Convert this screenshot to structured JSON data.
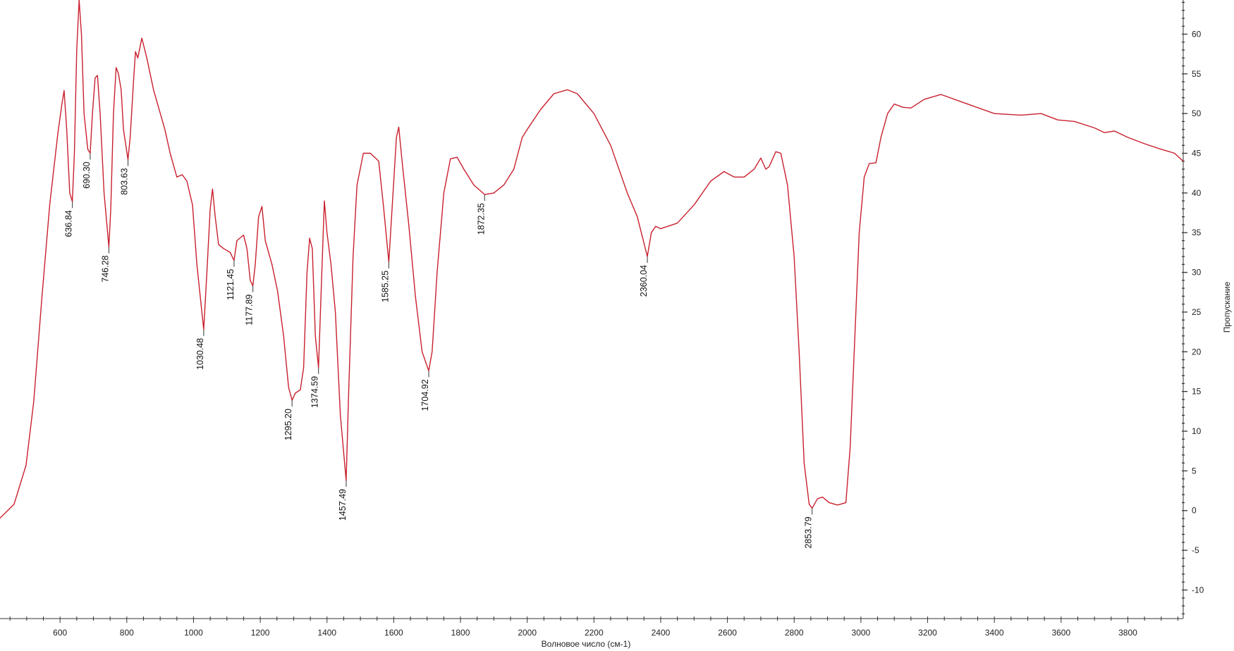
{
  "chart_data": {
    "type": "line",
    "title": "",
    "xlabel": "Волновое число (см-1)",
    "ylabel": "Пропускание",
    "xlim": [
      420,
      3966
    ],
    "ylim": [
      -13.6,
      64.3
    ],
    "x_ticks": [
      600,
      800,
      1000,
      1200,
      1400,
      1600,
      1800,
      2000,
      2200,
      2400,
      2600,
      2800,
      3000,
      3200,
      3400,
      3600,
      3800
    ],
    "y_ticks": [
      -10,
      -5,
      0,
      5,
      10,
      15,
      20,
      25,
      30,
      35,
      40,
      45,
      50,
      55,
      60
    ],
    "grid": false,
    "line_color": "#c8202e",
    "series": [
      {
        "points": [
          [
            414,
            -1.2
          ],
          [
            462,
            0.8
          ],
          [
            498,
            5.7
          ],
          [
            521,
            13.7
          ],
          [
            545,
            26.6
          ],
          [
            569,
            38.5
          ],
          [
            593,
            47.4
          ],
          [
            605,
            51
          ],
          [
            612,
            52.9
          ],
          [
            620,
            48
          ],
          [
            629,
            40
          ],
          [
            636.84,
            38.9
          ],
          [
            643,
            45
          ],
          [
            650,
            58
          ],
          [
            657,
            64.3
          ],
          [
            664,
            60
          ],
          [
            672,
            50
          ],
          [
            683,
            45.5
          ],
          [
            690.3,
            45
          ],
          [
            697,
            50
          ],
          [
            705,
            54.5
          ],
          [
            712,
            54.8
          ],
          [
            720,
            50
          ],
          [
            732,
            40
          ],
          [
            746.28,
            33.2
          ],
          [
            752,
            38
          ],
          [
            760,
            50
          ],
          [
            768,
            55.8
          ],
          [
            775,
            55
          ],
          [
            783,
            53
          ],
          [
            790,
            48
          ],
          [
            803.63,
            44.2
          ],
          [
            810,
            47
          ],
          [
            820,
            54
          ],
          [
            826,
            57.8
          ],
          [
            833,
            57
          ],
          [
            845,
            59.5
          ],
          [
            860,
            57
          ],
          [
            880,
            53
          ],
          [
            914,
            48
          ],
          [
            930,
            45
          ],
          [
            950,
            42
          ],
          [
            966,
            42.3
          ],
          [
            980,
            41.5
          ],
          [
            997,
            38.5
          ],
          [
            1010,
            31
          ],
          [
            1030.48,
            22.8
          ],
          [
            1040,
            30
          ],
          [
            1050,
            38
          ],
          [
            1057,
            40.5
          ],
          [
            1065,
            37
          ],
          [
            1075,
            33.5
          ],
          [
            1090,
            33
          ],
          [
            1110,
            32.5
          ],
          [
            1121.45,
            31.5
          ],
          [
            1130,
            34
          ],
          [
            1150,
            34.7
          ],
          [
            1160,
            33
          ],
          [
            1170,
            29
          ],
          [
            1177.89,
            28.3
          ],
          [
            1185,
            31
          ],
          [
            1195,
            37
          ],
          [
            1205,
            38.3
          ],
          [
            1215,
            34
          ],
          [
            1235,
            31
          ],
          [
            1252,
            27.6
          ],
          [
            1270,
            22
          ],
          [
            1285,
            15.5
          ],
          [
            1295.2,
            13.9
          ],
          [
            1305,
            14.8
          ],
          [
            1320,
            15.2
          ],
          [
            1330,
            18
          ],
          [
            1340,
            30
          ],
          [
            1348,
            34.3
          ],
          [
            1356,
            33
          ],
          [
            1365,
            22
          ],
          [
            1374.59,
            18
          ],
          [
            1382,
            27
          ],
          [
            1392,
            39
          ],
          [
            1400,
            35
          ],
          [
            1412,
            31
          ],
          [
            1425,
            25
          ],
          [
            1440,
            12
          ],
          [
            1457.49,
            3.8
          ],
          [
            1465,
            15
          ],
          [
            1478,
            32
          ],
          [
            1490,
            41
          ],
          [
            1509,
            45
          ],
          [
            1530,
            45
          ],
          [
            1555,
            44
          ],
          [
            1570,
            38
          ],
          [
            1585.25,
            31.3
          ],
          [
            1595,
            38
          ],
          [
            1608,
            47
          ],
          [
            1615,
            48.3
          ],
          [
            1625,
            44
          ],
          [
            1645,
            36
          ],
          [
            1665,
            27
          ],
          [
            1685,
            20
          ],
          [
            1704.92,
            17.6
          ],
          [
            1715,
            20
          ],
          [
            1730,
            30
          ],
          [
            1750,
            40
          ],
          [
            1770,
            44.3
          ],
          [
            1790,
            44.5
          ],
          [
            1810,
            43
          ],
          [
            1840,
            41
          ],
          [
            1872.35,
            39.8
          ],
          [
            1900,
            40
          ],
          [
            1930,
            41
          ],
          [
            1960,
            43
          ],
          [
            1985,
            47
          ],
          [
            2000,
            48
          ],
          [
            2040,
            50.5
          ],
          [
            2080,
            52.5
          ],
          [
            2120,
            53
          ],
          [
            2150,
            52.5
          ],
          [
            2200,
            50
          ],
          [
            2250,
            46
          ],
          [
            2300,
            40
          ],
          [
            2330,
            37
          ],
          [
            2360.04,
            32
          ],
          [
            2372,
            35
          ],
          [
            2385,
            35.8
          ],
          [
            2400,
            35.5
          ],
          [
            2450,
            36.2
          ],
          [
            2500,
            38.5
          ],
          [
            2550,
            41.5
          ],
          [
            2590,
            42.7
          ],
          [
            2620,
            42
          ],
          [
            2650,
            42
          ],
          [
            2680,
            43
          ],
          [
            2700,
            44.4
          ],
          [
            2715,
            43
          ],
          [
            2725,
            43.3
          ],
          [
            2745,
            45.2
          ],
          [
            2760,
            45
          ],
          [
            2780,
            41
          ],
          [
            2800,
            32
          ],
          [
            2815,
            20
          ],
          [
            2830,
            6
          ],
          [
            2845,
            0.8
          ],
          [
            2853.79,
            0.3
          ],
          [
            2870,
            1.5
          ],
          [
            2885,
            1.7
          ],
          [
            2905,
            1
          ],
          [
            2930,
            0.7
          ],
          [
            2955,
            1
          ],
          [
            2968,
            8
          ],
          [
            2980,
            20
          ],
          [
            2995,
            35
          ],
          [
            3010,
            42
          ],
          [
            3025,
            43.7
          ],
          [
            3045,
            43.8
          ],
          [
            3060,
            47
          ],
          [
            3080,
            50
          ],
          [
            3100,
            51.2
          ],
          [
            3125,
            50.8
          ],
          [
            3150,
            50.7
          ],
          [
            3190,
            51.8
          ],
          [
            3240,
            52.4
          ],
          [
            3300,
            51.5
          ],
          [
            3400,
            50
          ],
          [
            3480,
            49.8
          ],
          [
            3540,
            50
          ],
          [
            3590,
            49.2
          ],
          [
            3640,
            49
          ],
          [
            3700,
            48.2
          ],
          [
            3730,
            47.6
          ],
          [
            3760,
            47.8
          ],
          [
            3800,
            47
          ],
          [
            3850,
            46.2
          ],
          [
            3900,
            45.5
          ],
          [
            3940,
            45
          ],
          [
            3966,
            44
          ]
        ]
      }
    ],
    "peak_labels": [
      "636.84",
      "690.30",
      "746.28",
      "803.63",
      "1030.48",
      "1121.45",
      "1177.89",
      "1295.20",
      "1374.59",
      "1457.49",
      "1585.25",
      "1704.92",
      "1872.35",
      "2360.04",
      "2853.79"
    ],
    "peak_positions": [
      [
        636.84,
        38.9
      ],
      [
        690.3,
        45
      ],
      [
        746.28,
        33.2
      ],
      [
        803.63,
        44.2
      ],
      [
        1030.48,
        22.8
      ],
      [
        1121.45,
        31.5
      ],
      [
        1177.89,
        28.3
      ],
      [
        1295.2,
        13.9
      ],
      [
        1374.59,
        18
      ],
      [
        1457.49,
        3.8
      ],
      [
        1585.25,
        31.3
      ],
      [
        1704.92,
        17.6
      ],
      [
        1872.35,
        39.8
      ],
      [
        2360.04,
        32
      ],
      [
        2853.79,
        0.3
      ]
    ]
  }
}
